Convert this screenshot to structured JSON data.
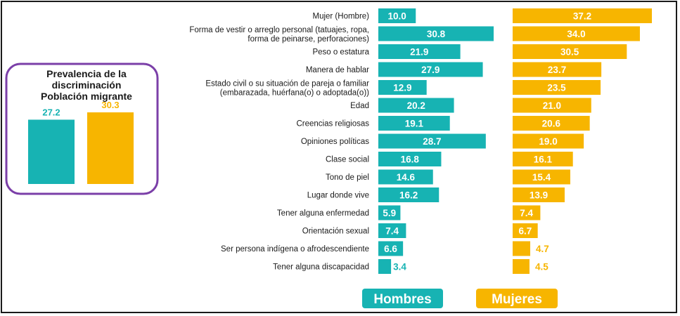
{
  "chart_data": {
    "type": "bar",
    "orientation": "horizontal",
    "categories": [
      [
        "Mujer (Hombre)"
      ],
      [
        "Forma de vestir o arreglo personal (tatuajes, ropa,",
        "forma de peinarse, perforaciones)"
      ],
      [
        "Peso o estatura"
      ],
      [
        "Manera de hablar"
      ],
      [
        "Estado civil o su situación de pareja o familiar",
        "(embarazada, huérfana(o) o adoptada(o))"
      ],
      [
        "Edad"
      ],
      [
        "Creencias religiosas"
      ],
      [
        "Opiniones políticas"
      ],
      [
        "Clase social"
      ],
      [
        "Tono de piel"
      ],
      [
        "Lugar donde vive"
      ],
      [
        "Tener alguna enfermedad"
      ],
      [
        "Orientación sexual"
      ],
      [
        "Ser persona indígena o afrodescendiente"
      ],
      [
        "Tener alguna discapacidad"
      ]
    ],
    "series": [
      {
        "name": "Hombres",
        "color": "#17b3b3",
        "values": [
          10.0,
          30.8,
          21.9,
          27.9,
          12.9,
          20.2,
          19.1,
          28.7,
          16.8,
          14.6,
          16.2,
          5.9,
          7.4,
          6.6,
          3.4
        ],
        "labels": [
          "10.0",
          "30.8",
          "21.9",
          "27.9",
          "12.9",
          "20.2",
          "19.1",
          "28.7",
          "16.8",
          "14.6",
          "16.2",
          "5.9",
          "7.4",
          "6.6",
          "3.4"
        ]
      },
      {
        "name": "Mujeres",
        "color": "#f7b500",
        "values": [
          37.2,
          34.0,
          30.5,
          23.7,
          23.5,
          21.0,
          20.6,
          19.0,
          16.1,
          15.4,
          13.9,
          7.4,
          6.7,
          4.7,
          4.5
        ],
        "labels": [
          "37.2",
          "34.0",
          "30.5",
          "23.7",
          "23.5",
          "21.0",
          "20.6",
          "19.0",
          "16.1",
          "15.4",
          "13.9",
          "7.4",
          "6.7",
          "4.7",
          "4.5"
        ]
      }
    ],
    "legend": [
      "Hombres",
      "Mujeres"
    ],
    "legend_position": "bottom",
    "grid": false,
    "inset": {
      "type": "bar",
      "title": [
        "Prevalencia de la",
        "discriminación",
        "Población migrante"
      ],
      "values": [
        27.2,
        30.3
      ],
      "labels": [
        "27.2",
        "30.3"
      ],
      "colors": [
        "#17b3b3",
        "#f7b500"
      ],
      "border_color": "#7b3fa8"
    }
  }
}
